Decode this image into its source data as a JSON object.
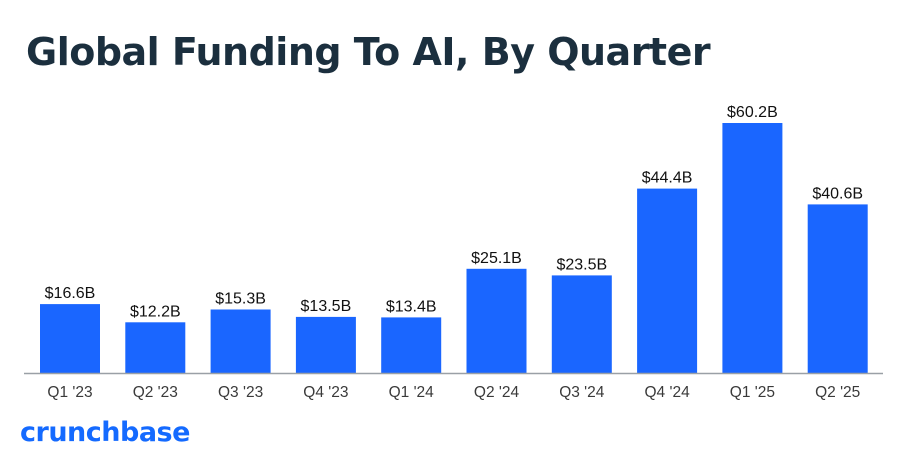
{
  "chart_data": {
    "type": "bar",
    "title": "Global Funding To AI, By Quarter",
    "xlabel": "",
    "ylabel": "",
    "categories": [
      "Q1 '23",
      "Q2 '23",
      "Q3 '23",
      "Q4 '23",
      "Q1 '24",
      "Q2 '24",
      "Q3 '24",
      "Q4 '24",
      "Q1 '25",
      "Q2 '25"
    ],
    "values": [
      16.6,
      12.2,
      15.3,
      13.5,
      13.4,
      25.1,
      23.5,
      44.4,
      60.2,
      40.6
    ],
    "data_labels": [
      "$16.6B",
      "$12.2B",
      "$15.3B",
      "$13.5B",
      "$13.4B",
      "$25.1B",
      "$23.5B",
      "$44.4B",
      "$60.2B",
      "$40.6B"
    ],
    "unit": "USD billions",
    "ylim": [
      0,
      60.2
    ],
    "grid": false,
    "legend": "none",
    "bar_color": "#1a66ff",
    "axis_color": "#9aa0a6"
  },
  "branding": {
    "logo_text": "crunchbase",
    "logo_color": "#146aff"
  }
}
